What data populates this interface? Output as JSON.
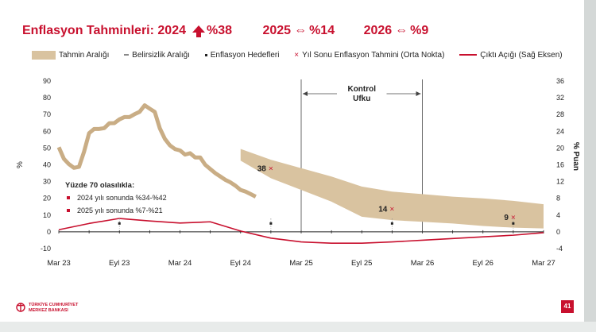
{
  "title": {
    "prefix": "Enflasyon Tahminleri: 2024",
    "v2024": "%38",
    "y2025": "2025",
    "v2025": "%14",
    "y2026": "2026",
    "v2026": "%9"
  },
  "legend": {
    "band": "Tahmin Aralığı",
    "uncertainty": "Belirsizlik Aralığı",
    "targets": "Enflasyon Hedefleri",
    "midpoint": "Yıl Sonu Enflasyon Tahmini (Orta Nokta)",
    "output_gap": "Çıktı Açığı (Sağ Eksen)"
  },
  "colors": {
    "accent": "#c8102e",
    "band": "#d9c3a0",
    "target": "#222222"
  },
  "chart_data": {
    "type": "line",
    "xlabel_ticks": [
      "Mar 23",
      "Eyl 23",
      "Mar 24",
      "Eyl 24",
      "Mar 25",
      "Eyl 25",
      "Mar 26",
      "Eyl 26",
      "Mar 27"
    ],
    "ylabel": "%",
    "ylabel_right": "% Puan",
    "ylim": [
      -10,
      90
    ],
    "ylim_right": [
      -4,
      36
    ],
    "y_ticks": [
      -10,
      0,
      10,
      20,
      30,
      40,
      50,
      60,
      70,
      80,
      90
    ],
    "y_right_ticks": [
      -4,
      0,
      4,
      8,
      12,
      16,
      20,
      24,
      28,
      32,
      36
    ],
    "control_horizon": {
      "label_line1": "Kontrol",
      "label_line2": "Ufku",
      "from": "Mar 25",
      "to": "Mar 26"
    },
    "inflation": {
      "name": "Enflasyon",
      "x": [
        0,
        0.5,
        1,
        1.5,
        2,
        2.5,
        3,
        3.5,
        4,
        4.5,
        5,
        5.5,
        6,
        6.5,
        7,
        7.5,
        8,
        8.5,
        9,
        9.5,
        10,
        10.5,
        11,
        11.5,
        12,
        12.5,
        13,
        13.5,
        14,
        14.5,
        15,
        15.5,
        16,
        16.5,
        17,
        17.5,
        18,
        18.5,
        19,
        19.5
      ],
      "values": [
        50.5,
        43.6,
        40.4,
        38.2,
        38.8,
        47.8,
        58.9,
        61.4,
        61.4,
        61.9,
        64.8,
        64.9,
        67.1,
        68.5,
        68.5,
        70.2,
        71.6,
        75.5,
        73.5,
        71.6,
        61.8,
        55.5,
        51.6,
        49.4,
        48.6,
        46.1,
        46.9,
        44.4,
        44.4,
        40.0,
        37.5,
        35.0,
        33.0,
        31.0,
        29.5,
        27.5,
        25.0,
        24.0,
        22.5,
        21.0
      ]
    },
    "band": {
      "name": "Tahmin Aralığı",
      "x": [
        18,
        21,
        24,
        27,
        30,
        33,
        36,
        39,
        42,
        45,
        48
      ],
      "upper": [
        49.5,
        43.0,
        38.0,
        33.0,
        27.0,
        24.0,
        22.5,
        21.0,
        20.0,
        18.5,
        16.5
      ],
      "lower": [
        42.5,
        32.0,
        25.0,
        18.0,
        9.0,
        7.0,
        6.0,
        5.0,
        3.5,
        2.5,
        2.0
      ]
    },
    "midpoints": [
      {
        "label": "38",
        "x": 21,
        "value": 38
      },
      {
        "label": "14",
        "x": 33,
        "value": 14
      },
      {
        "label": "9",
        "x": 45,
        "value": 9
      }
    ],
    "targets": [
      {
        "x": 6,
        "value": 5
      },
      {
        "x": 21,
        "value": 5
      },
      {
        "x": 33,
        "value": 5
      },
      {
        "x": 45,
        "value": 5
      }
    ],
    "output_gap": {
      "name": "Çıktı Açığı",
      "x": [
        0,
        3,
        6,
        9,
        12,
        15,
        18,
        21,
        24,
        27,
        30,
        33,
        36,
        39,
        42,
        45,
        48
      ],
      "values": [
        0.5,
        2.0,
        3.2,
        2.6,
        2.1,
        2.4,
        0.2,
        -1.5,
        -2.4,
        -2.7,
        -2.7,
        -2.4,
        -2.0,
        -1.6,
        -1.2,
        -0.8,
        -0.2
      ]
    },
    "annotation": {
      "title": "Yüzde 70 olasılıkla:",
      "line1": "2024 yılı sonunda %34-%42",
      "line2": "2025 yılı sonunda %7-%21"
    }
  },
  "footer": {
    "bank_line1": "TÜRKİYE CUMHURİYET",
    "bank_line2": "MERKEZ BANKASI",
    "page": "41"
  }
}
